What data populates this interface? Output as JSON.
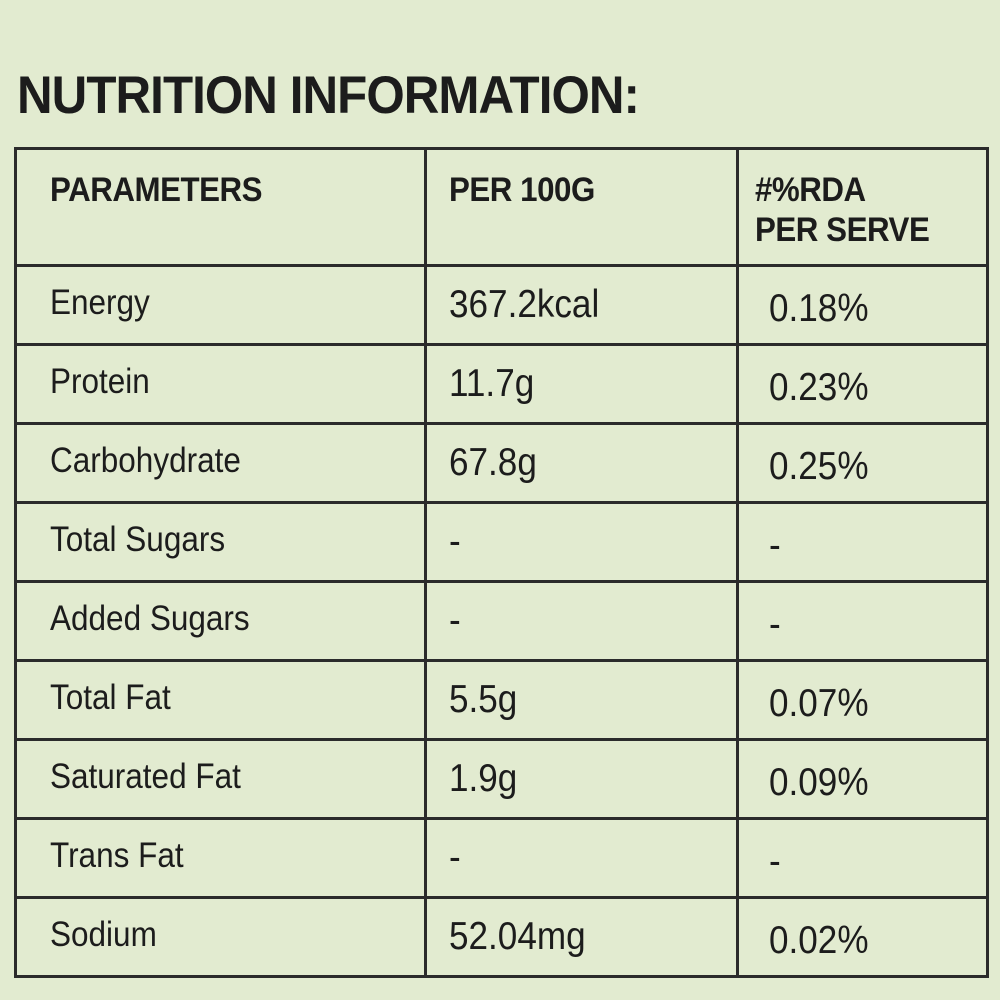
{
  "title": "NUTRITION INFORMATION:",
  "table": {
    "headers": {
      "parameters": "PARAMETERS",
      "per_100g": "PER 100G",
      "rda_line1": "#%RDA",
      "rda_line2": "PER SERVE"
    },
    "rows": [
      {
        "parameter": "Energy",
        "per_100g": "367.2kcal",
        "rda": "0.18%"
      },
      {
        "parameter": "Protein",
        "per_100g": "11.7g",
        "rda": "0.23%"
      },
      {
        "parameter": "Carbohydrate",
        "per_100g": "67.8g",
        "rda": "0.25%"
      },
      {
        "parameter": "Total Sugars",
        "per_100g": "-",
        "rda": "-"
      },
      {
        "parameter": "Added Sugars",
        "per_100g": "-",
        "rda": "-"
      },
      {
        "parameter": "Total Fat",
        "per_100g": "5.5g",
        "rda": "0.07%"
      },
      {
        "parameter": "Saturated Fat",
        "per_100g": "1.9g",
        "rda": "0.09%"
      },
      {
        "parameter": "Trans Fat",
        "per_100g": "-",
        "rda": "-"
      },
      {
        "parameter": "Sodium",
        "per_100g": "52.04mg",
        "rda": "0.02%"
      }
    ]
  },
  "colors": {
    "background": "#e2ebd0",
    "text": "#1c1c1c",
    "border": "#2b2b2b"
  }
}
